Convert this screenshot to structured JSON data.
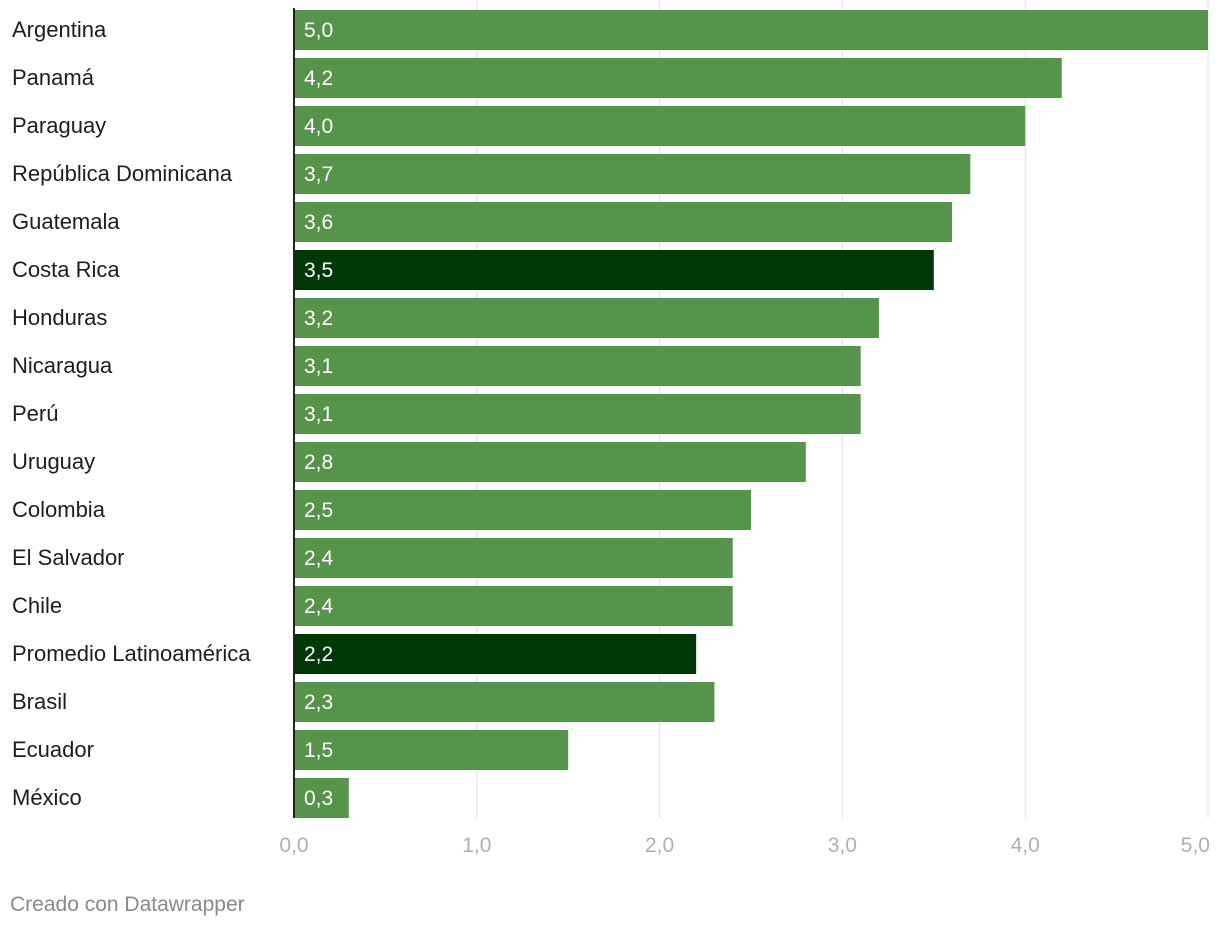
{
  "chart_data": {
    "type": "bar",
    "orientation": "horizontal",
    "title": "",
    "xlabel": "",
    "ylabel": "",
    "xlim": [
      0,
      5
    ],
    "grid": true,
    "decimal_separator": ",",
    "x_ticks": [
      "0,0",
      "1,0",
      "2,0",
      "3,0",
      "4,0",
      "5,0"
    ],
    "x_tick_values": [
      0,
      1,
      2,
      3,
      4,
      5
    ],
    "categories": [
      "Argentina",
      "Panamá",
      "Paraguay",
      "República Dominicana",
      "Guatemala",
      "Costa Rica",
      "Honduras",
      "Nicaragua",
      "Perú",
      "Uruguay",
      "Colombia",
      "El Salvador",
      "Chile",
      "Promedio Latinoamérica",
      "Brasil",
      "Ecuador",
      "México"
    ],
    "values": [
      5.0,
      4.2,
      4.0,
      3.7,
      3.6,
      3.5,
      3.2,
      3.1,
      3.1,
      2.8,
      2.5,
      2.4,
      2.4,
      2.2,
      2.3,
      1.5,
      0.3
    ],
    "value_labels": [
      "5,0",
      "4,2",
      "4,0",
      "3,7",
      "3,6",
      "3,5",
      "3,2",
      "3,1",
      "3,1",
      "2,8",
      "2,5",
      "2,4",
      "2,4",
      "2,2",
      "2,3",
      "1,5",
      "0,3"
    ],
    "highlighted": [
      false,
      false,
      false,
      false,
      false,
      true,
      false,
      false,
      false,
      false,
      false,
      false,
      false,
      true,
      false,
      false,
      false
    ],
    "colors": {
      "bar": "#55944a",
      "highlight": "#003805",
      "bar_label": "#ffffff",
      "category_label": "#1d1d1d",
      "tick_label": "#b0b0b0",
      "grid": "#e2e2e2",
      "axis": "#222222"
    }
  },
  "footer": {
    "credit": "Creado con Datawrapper"
  }
}
